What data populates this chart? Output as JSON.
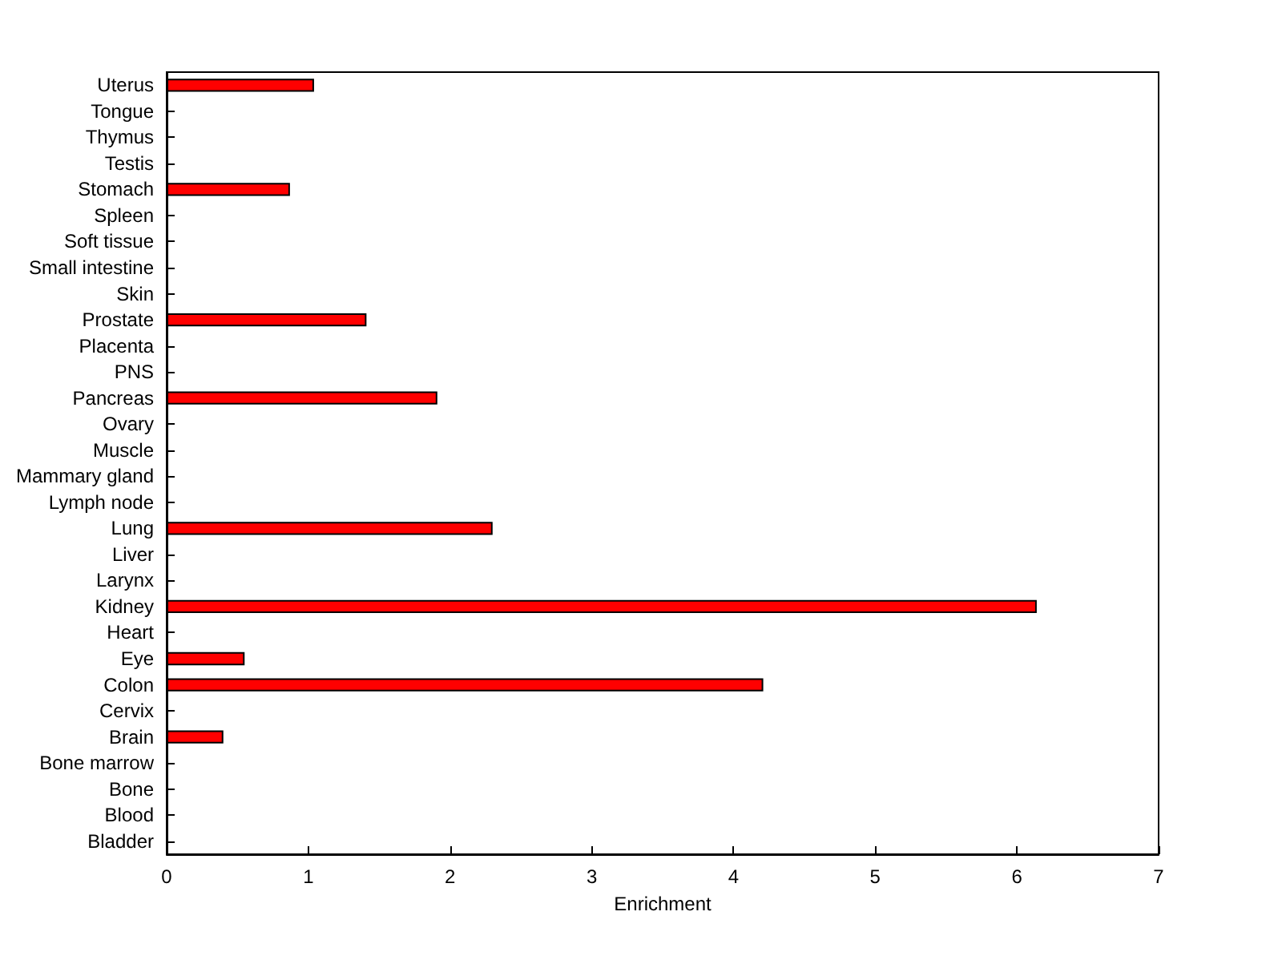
{
  "chart_data": {
    "type": "bar",
    "orientation": "horizontal",
    "xlabel": "Enrichment",
    "categories": [
      "Uterus",
      "Tongue",
      "Thymus",
      "Testis",
      "Stomach",
      "Spleen",
      "Soft tissue",
      "Small intestine",
      "Skin",
      "Prostate",
      "Placenta",
      "PNS",
      "Pancreas",
      "Ovary",
      "Muscle",
      "Mammary gland",
      "Lymph node",
      "Lung",
      "Liver",
      "Larynx",
      "Kidney",
      "Heart",
      "Eye",
      "Colon",
      "Cervix",
      "Brain",
      "Bone marrow",
      "Bone",
      "Blood",
      "Bladder"
    ],
    "values": [
      1.04,
      0,
      0,
      0,
      0.87,
      0,
      0,
      0,
      0,
      1.41,
      0,
      0,
      1.91,
      0,
      0,
      0,
      0,
      2.3,
      0,
      0,
      6.14,
      0,
      0.55,
      4.21,
      0,
      0.4,
      0,
      0,
      0,
      0
    ],
    "color": "#ff0000",
    "xlim": [
      0,
      7
    ],
    "xticks": [
      0,
      1,
      2,
      3,
      4,
      5,
      6,
      7
    ],
    "grid": false
  }
}
